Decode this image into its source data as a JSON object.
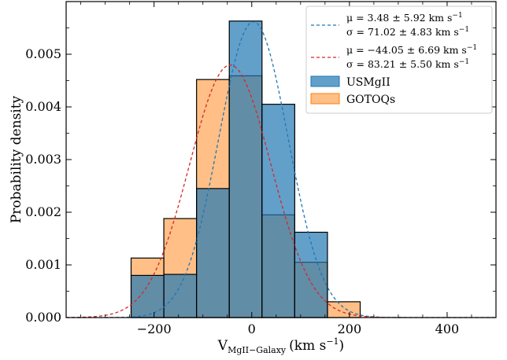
{
  "chart_data": {
    "type": "bar",
    "xlabel_main": "V",
    "xlabel_sub": "MgII−Galaxy",
    "xlabel_unit": "(km s",
    "xlabel_unit_exp": "−1",
    "xlabel_unit_close": ")",
    "ylabel": "Probability density",
    "xlim": [
      -380,
      500
    ],
    "ylim": [
      0,
      0.006
    ],
    "xticks": [
      -200,
      0,
      200,
      400
    ],
    "xtick_labels": [
      "−200",
      "0",
      "200",
      "400"
    ],
    "yticks": [
      0,
      0.001,
      0.002,
      0.003,
      0.004,
      0.005
    ],
    "ytick_labels": [
      "0.000",
      "0.001",
      "0.002",
      "0.003",
      "0.004",
      "0.005"
    ],
    "series": [
      {
        "name": "USMgII",
        "color": "#1f77b4",
        "bins": [
          {
            "x0": -247,
            "x1": -180,
            "value": 0.0008
          },
          {
            "x0": -180,
            "x1": -113,
            "value": 0.00082
          },
          {
            "x0": -113,
            "x1": -46,
            "value": 0.00245
          },
          {
            "x0": -46,
            "x1": 21,
            "value": 0.00563
          },
          {
            "x0": 21,
            "x1": 88,
            "value": 0.00405
          },
          {
            "x0": 88,
            "x1": 155,
            "value": 0.00162
          }
        ]
      },
      {
        "name": "GOTOQs",
        "color": "#ff7f0e",
        "bins": [
          {
            "x0": -247,
            "x1": -180,
            "value": 0.00113
          },
          {
            "x0": -180,
            "x1": -113,
            "value": 0.00188
          },
          {
            "x0": -113,
            "x1": -46,
            "value": 0.00452
          },
          {
            "x0": -46,
            "x1": 21,
            "value": 0.00459
          },
          {
            "x0": 21,
            "x1": 88,
            "value": 0.00195
          },
          {
            "x0": 88,
            "x1": 155,
            "value": 0.00105
          },
          {
            "x0": 155,
            "x1": 222,
            "value": 0.0003
          }
        ]
      }
    ],
    "fits": [
      {
        "series": "USMgII",
        "color": "#1f77b4",
        "mu": 3.48,
        "sigma": 71.02,
        "label_line1": "μ = 3.48 ± 5.92 km s",
        "label_line2": "σ = 71.02 ± 4.83 km s",
        "label_exp": "−1"
      },
      {
        "series": "GOTOQs",
        "color": "#d62728",
        "mu": -44.05,
        "sigma": 83.21,
        "label_line1": "μ = −44.05 ± 6.69 km s",
        "label_line2": "σ = 83.21 ± 5.50 km s",
        "label_exp": "−1"
      }
    ],
    "legend_position": "top-right"
  }
}
